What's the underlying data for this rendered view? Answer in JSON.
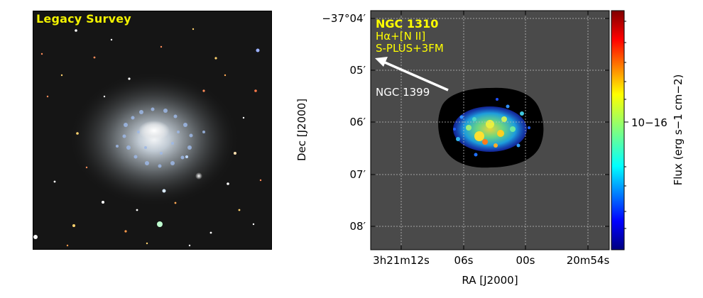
{
  "left_panel": {
    "label": "Legacy Survey",
    "label_color": "#f2f200"
  },
  "chart_data": {
    "type": "heatmap",
    "title_lines": [
      "NGC 1310",
      "Hα+[N II]",
      "S-PLUS+3FM"
    ],
    "title_color": "#ffff00",
    "annotation": "NGC 1399",
    "xlabel": "RA [J2000]",
    "ylabel": "Dec [J2000]",
    "x_ticks": [
      {
        "label": "3h21m12s"
      },
      {
        "label": "06s"
      },
      {
        "label": "00s"
      },
      {
        "label": "20m54s"
      }
    ],
    "y_ticks": [
      {
        "label": "−37°04′"
      },
      {
        "label": "05′"
      },
      {
        "label": "06′"
      },
      {
        "label": "07′"
      },
      {
        "label": "08′"
      }
    ],
    "colorbar": {
      "label": "Flux (erg s−1 cm−2)",
      "tick_label": "10−16",
      "colormap": "jet",
      "scale": "log"
    },
    "background_color": "#4a4a4a",
    "grid": true
  }
}
